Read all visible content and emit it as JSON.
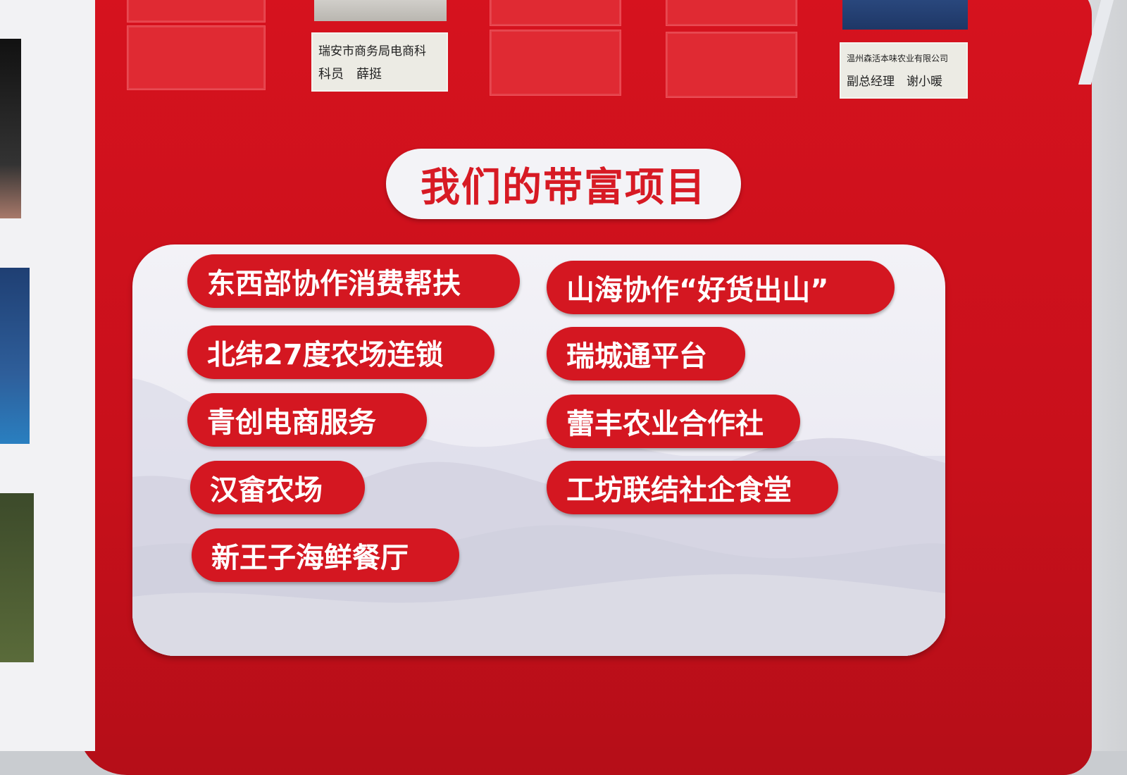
{
  "top_cards": [
    {
      "org": "瑞安市商务局电商科",
      "role_name": "科员　薛挺"
    },
    {
      "org": "温州森活本味农业有限公司",
      "role_name": "副总经理　谢小暖"
    }
  ],
  "title": "我们的带富项目",
  "projects_left": [
    "东西部协作消费帮扶",
    "北纬27度农场连锁",
    "青创电商服务",
    "汉畲农场",
    "新王子海鲜餐厅"
  ],
  "projects_right": [
    "山海协作“好货出山”",
    "瑞城通平台",
    "蕾丰农业合作社",
    "工坊联结社企食堂"
  ],
  "colors": {
    "board_red": "#d6121e",
    "pill_red": "#d41721",
    "panel_white": "#f3f2f7",
    "title_text": "#d71a24"
  }
}
